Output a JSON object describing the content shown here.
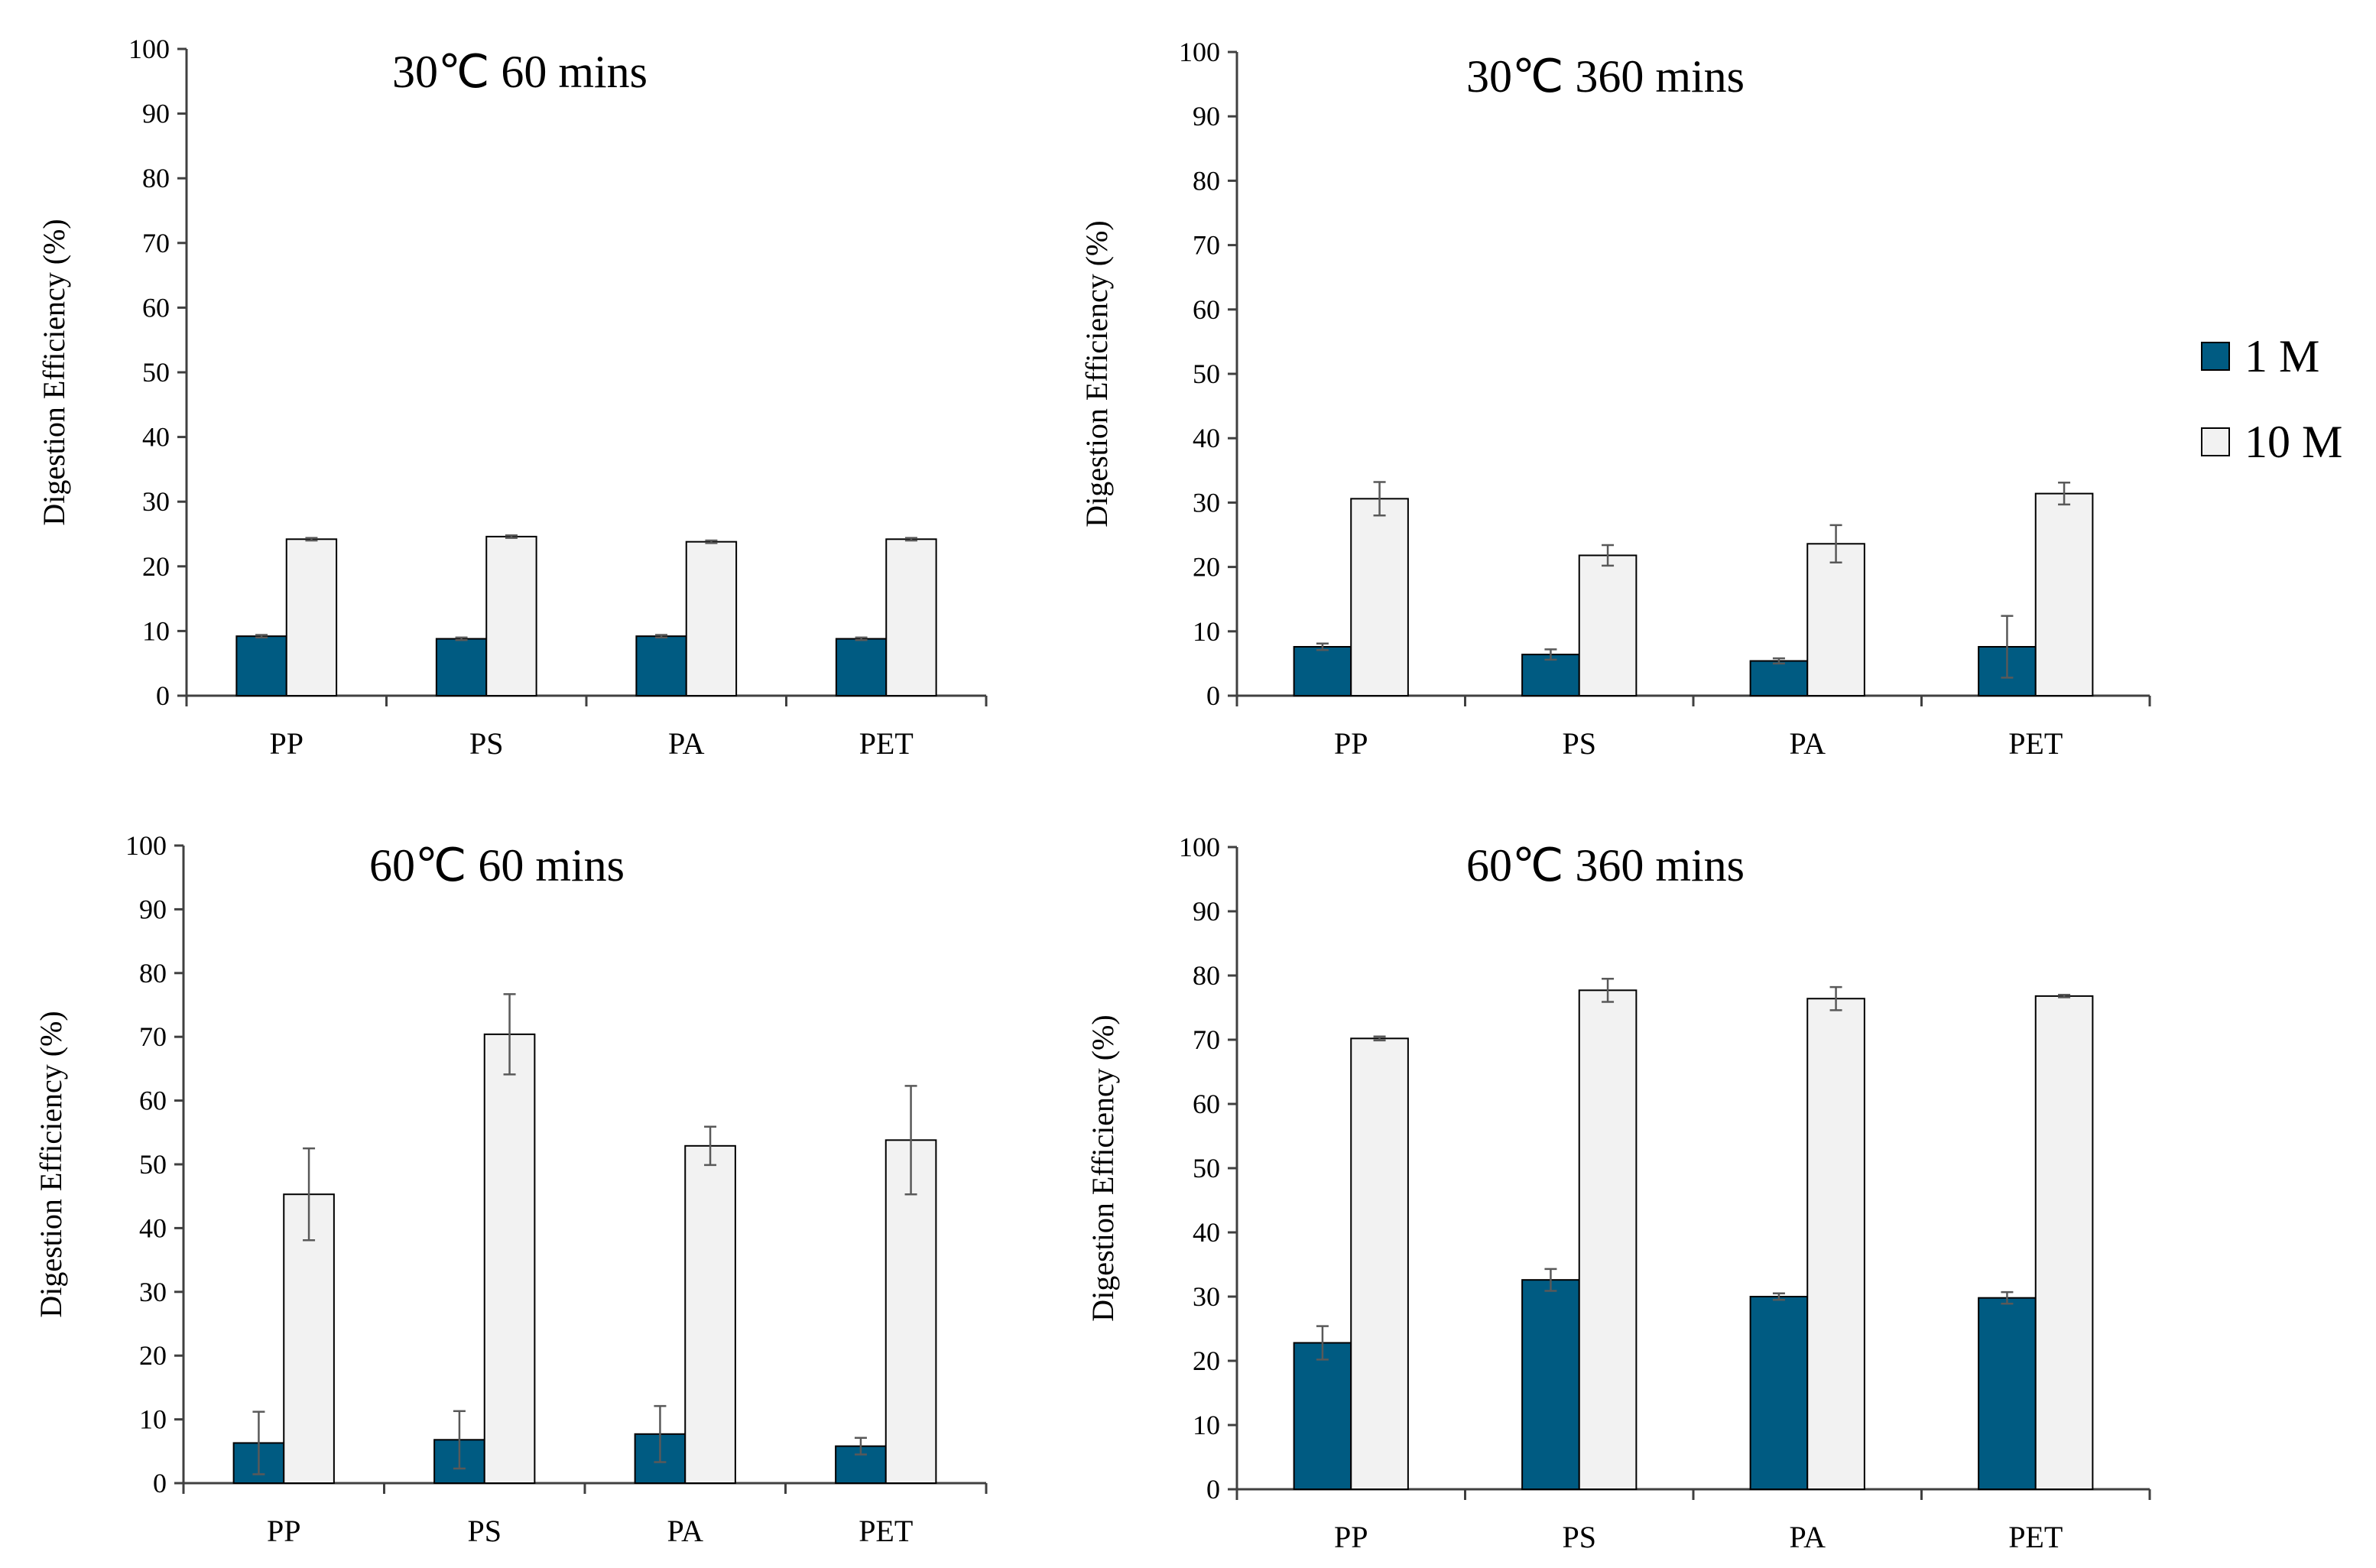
{
  "chart_data": [
    {
      "type": "bar",
      "title": "30℃  60 mins",
      "ylabel": "Digestion Efficiency (%)",
      "xlabel": "",
      "ylim": [
        0,
        100
      ],
      "yticks": [
        0,
        10,
        20,
        30,
        40,
        50,
        60,
        70,
        80,
        90,
        100
      ],
      "categories": [
        "PP",
        "PS",
        "PA",
        "PET"
      ],
      "series": [
        {
          "name": "1 M",
          "values": [
            9.2,
            8.8,
            9.2,
            8.8
          ],
          "errors": [
            0.2,
            0.2,
            0.2,
            0.2
          ]
        },
        {
          "name": "10 M",
          "values": [
            24.2,
            24.6,
            23.8,
            24.2
          ],
          "errors": [
            0.2,
            0.2,
            0.2,
            0.2
          ]
        }
      ]
    },
    {
      "type": "bar",
      "title": "30℃ 360 mins",
      "ylabel": "Digestion Efficiency (%)",
      "xlabel": "",
      "ylim": [
        0,
        100
      ],
      "yticks": [
        0,
        10,
        20,
        30,
        40,
        50,
        60,
        70,
        80,
        90,
        100
      ],
      "categories": [
        "PP",
        "PS",
        "PA",
        "PET"
      ],
      "series": [
        {
          "name": "1 M",
          "values": [
            7.6,
            6.4,
            5.4,
            7.6
          ],
          "errors": [
            0.5,
            0.8,
            0.4,
            4.8
          ]
        },
        {
          "name": "10 M",
          "values": [
            30.6,
            21.8,
            23.6,
            31.4
          ],
          "errors": [
            2.6,
            1.6,
            2.9,
            1.7
          ]
        }
      ]
    },
    {
      "type": "bar",
      "title": "60℃ 60 mins",
      "ylabel": "Digestion Efficiency (%)",
      "xlabel": "",
      "ylim": [
        0,
        100
      ],
      "yticks": [
        0,
        10,
        20,
        30,
        40,
        50,
        60,
        70,
        80,
        90,
        100
      ],
      "categories": [
        "PP",
        "PS",
        "PA",
        "PET"
      ],
      "series": [
        {
          "name": "1 M",
          "values": [
            6.3,
            6.8,
            7.7,
            5.8
          ],
          "errors": [
            4.9,
            4.5,
            4.4,
            1.3
          ]
        },
        {
          "name": "10 M",
          "values": [
            45.3,
            70.4,
            52.9,
            53.8
          ],
          "errors": [
            7.2,
            6.3,
            3.0,
            8.5
          ]
        }
      ]
    },
    {
      "type": "bar",
      "title": "60℃ 360 mins",
      "ylabel": "Digestion Efficiency (%)",
      "xlabel": "",
      "ylim": [
        0,
        100
      ],
      "yticks": [
        0,
        10,
        20,
        30,
        40,
        50,
        60,
        70,
        80,
        90,
        100
      ],
      "categories": [
        "PP",
        "PS",
        "PA",
        "PET"
      ],
      "series": [
        {
          "name": "1 M",
          "values": [
            22.8,
            32.6,
            30.0,
            29.8
          ],
          "errors": [
            2.6,
            1.7,
            0.5,
            0.9
          ]
        },
        {
          "name": "10 M",
          "values": [
            70.2,
            77.7,
            76.4,
            76.8
          ],
          "errors": [
            0.3,
            1.8,
            1.8,
            0.2
          ]
        }
      ]
    }
  ],
  "legend": {
    "position": "right",
    "items": [
      {
        "label": "1 M",
        "color": "#005b82"
      },
      {
        "label": "10 M",
        "color": "#f2f2f2"
      }
    ]
  },
  "colors": {
    "series_1": "#005b82",
    "series_2": "#f2f2f2",
    "axis": "#404040",
    "errorbar": "#595959"
  }
}
